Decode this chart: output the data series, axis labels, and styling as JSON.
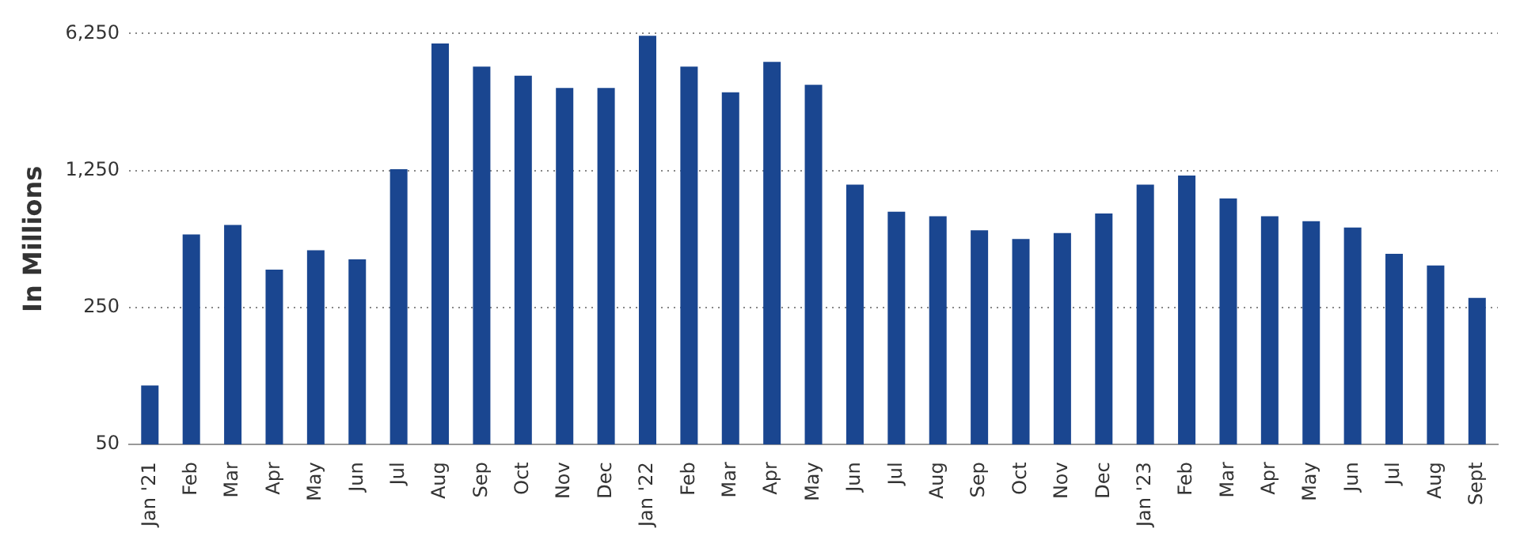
{
  "chart_data": {
    "type": "bar",
    "ylabel": "In Millions",
    "log": "y",
    "grid": "y",
    "ylim": [
      50,
      6250
    ],
    "yticks": [
      {
        "value": 50,
        "label": "50"
      },
      {
        "value": 250,
        "label": "250"
      },
      {
        "value": 1250,
        "label": "1,250"
      },
      {
        "value": 6250,
        "label": "6,250"
      }
    ],
    "categories": [
      "Jan '21",
      "Feb",
      "Mar",
      "Apr",
      "May",
      "Jun",
      "Jul",
      "Aug",
      "Sep",
      "Oct",
      "Nov",
      "Dec",
      "Jan '22",
      "Feb",
      "Mar",
      "Apr",
      "May",
      "Jun",
      "Jul",
      "Aug",
      "Sep",
      "Oct",
      "Nov",
      "Dec",
      "Jan '23",
      "Feb",
      "Mar",
      "Apr",
      "May",
      "Jun",
      "Jul",
      "Aug",
      "Sept"
    ],
    "series": [
      {
        "color": "#1a4690",
        "values": [
          100,
          590,
          660,
          390,
          490,
          440,
          1270,
          5560,
          4240,
          3810,
          3300,
          3300,
          6080,
          4240,
          3130,
          4480,
          3420,
          1060,
          770,
          730,
          620,
          560,
          600,
          755,
          1060,
          1180,
          900,
          730,
          690,
          640,
          470,
          410,
          280
        ]
      }
    ]
  }
}
